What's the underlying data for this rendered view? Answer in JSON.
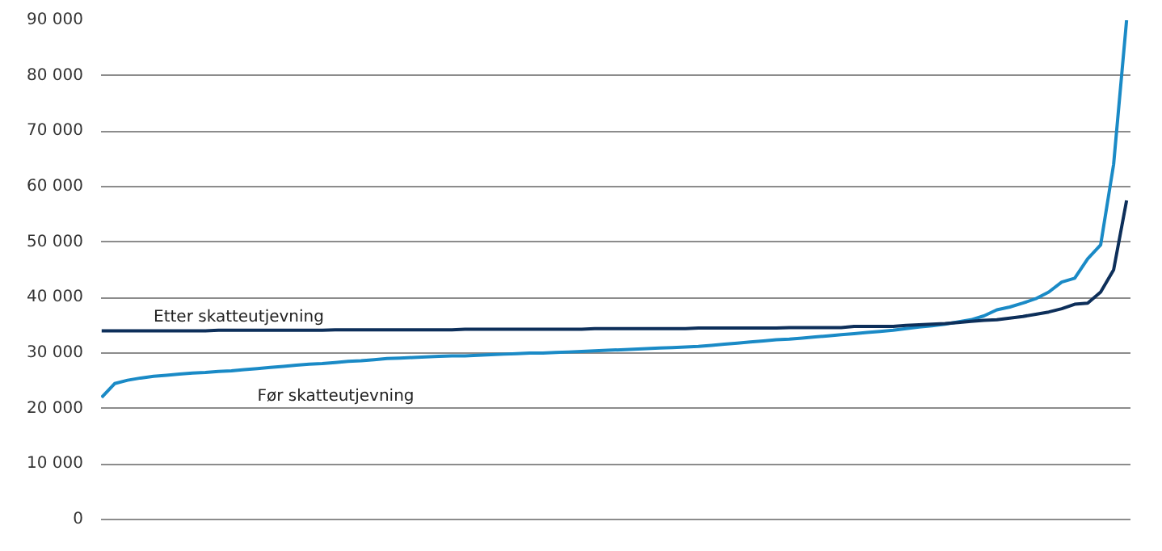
{
  "chart_data": {
    "type": "line",
    "categories": [
      null,
      null,
      null,
      null,
      null,
      null,
      null,
      null,
      null,
      null,
      null,
      null,
      null,
      null,
      null,
      null,
      null,
      null,
      null,
      null,
      null,
      null,
      null,
      null,
      null,
      null,
      null,
      null,
      null,
      null,
      null,
      null,
      null,
      null,
      null,
      null,
      null,
      null,
      null,
      null,
      null,
      null,
      null,
      null,
      null,
      null,
      null,
      null,
      null,
      null,
      null,
      null,
      null,
      null,
      null,
      null,
      null,
      null,
      null,
      null,
      null,
      null,
      null,
      null,
      null,
      null,
      null,
      null,
      null,
      null,
      null,
      null,
      null,
      null,
      null,
      null,
      null,
      null,
      null,
      null
    ],
    "series": [
      {
        "name": "Før skatteutjevning",
        "color": "#1a8ac6",
        "values": [
          22000,
          24500,
          25100,
          25500,
          25800,
          26000,
          26200,
          26400,
          26500,
          26700,
          26800,
          27000,
          27200,
          27400,
          27600,
          27800,
          28000,
          28100,
          28300,
          28500,
          28600,
          28800,
          29000,
          29100,
          29200,
          29300,
          29400,
          29500,
          29500,
          29600,
          29700,
          29800,
          29900,
          30000,
          30000,
          30100,
          30200,
          30300,
          30400,
          30500,
          30600,
          30700,
          30800,
          30900,
          31000,
          31100,
          31200,
          31400,
          31600,
          31800,
          32000,
          32200,
          32400,
          32500,
          32700,
          32900,
          33100,
          33300,
          33500,
          33700,
          33900,
          34100,
          34400,
          34700,
          34900,
          35200,
          35600,
          36000,
          36700,
          37800,
          38300,
          39000,
          39800,
          41000,
          42800,
          43500,
          47000,
          49500,
          64000,
          90000
        ]
      },
      {
        "name": "Etter skatteutjevning",
        "color": "#0d2f5a",
        "values": [
          34000,
          34000,
          34000,
          34000,
          34000,
          34000,
          34000,
          34000,
          34000,
          34100,
          34100,
          34100,
          34100,
          34100,
          34100,
          34100,
          34100,
          34100,
          34200,
          34200,
          34200,
          34200,
          34200,
          34200,
          34200,
          34200,
          34200,
          34200,
          34300,
          34300,
          34300,
          34300,
          34300,
          34300,
          34300,
          34300,
          34300,
          34300,
          34400,
          34400,
          34400,
          34400,
          34400,
          34400,
          34400,
          34400,
          34500,
          34500,
          34500,
          34500,
          34500,
          34500,
          34500,
          34600,
          34600,
          34600,
          34600,
          34600,
          34800,
          34800,
          34800,
          34800,
          35000,
          35100,
          35200,
          35300,
          35500,
          35700,
          35900,
          36000,
          36300,
          36600,
          37000,
          37400,
          38000,
          38800,
          39000,
          41000,
          45000,
          57500
        ]
      }
    ],
    "ylim": [
      0,
      90000
    ],
    "yticks": [
      {
        "value": 0,
        "label": "0"
      },
      {
        "value": 10000,
        "label": "10 000"
      },
      {
        "value": 20000,
        "label": "20 000"
      },
      {
        "value": 30000,
        "label": "30 000"
      },
      {
        "value": 40000,
        "label": "40 000"
      },
      {
        "value": 50000,
        "label": "50 000"
      },
      {
        "value": 60000,
        "label": "60 000"
      },
      {
        "value": 70000,
        "label": "70 000"
      },
      {
        "value": 80000,
        "label": "80 000"
      },
      {
        "value": 90000,
        "label": "90 000"
      }
    ],
    "grid": "y",
    "tick_labels": "y",
    "line_style": "solid"
  }
}
